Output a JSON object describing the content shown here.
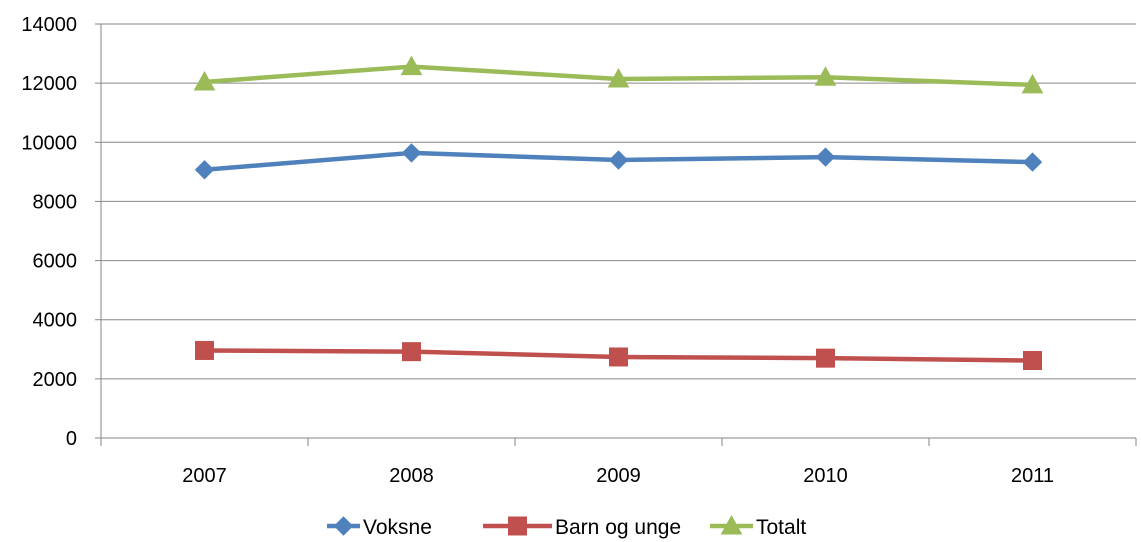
{
  "chart_data": {
    "type": "line",
    "categories": [
      "2007",
      "2008",
      "2009",
      "2010",
      "2011"
    ],
    "series": [
      {
        "name": "Voksne",
        "values": [
          9070,
          9640,
          9400,
          9500,
          9330
        ],
        "color": "#4F81BD",
        "marker": "diamond"
      },
      {
        "name": "Barn og unge",
        "values": [
          2960,
          2920,
          2740,
          2700,
          2620
        ],
        "color": "#C0504D",
        "marker": "square"
      },
      {
        "name": "Totalt",
        "values": [
          12040,
          12560,
          12140,
          12200,
          11940
        ],
        "color": "#9BBB59",
        "marker": "triangle"
      }
    ],
    "y_ticks": [
      "0",
      "2000",
      "4000",
      "6000",
      "8000",
      "10000",
      "12000",
      "14000"
    ],
    "ylim": [
      0,
      14000
    ],
    "grid": true,
    "gridline_color": "#868686",
    "legend_position": "bottom",
    "title": "",
    "xlabel": "",
    "ylabel": ""
  }
}
